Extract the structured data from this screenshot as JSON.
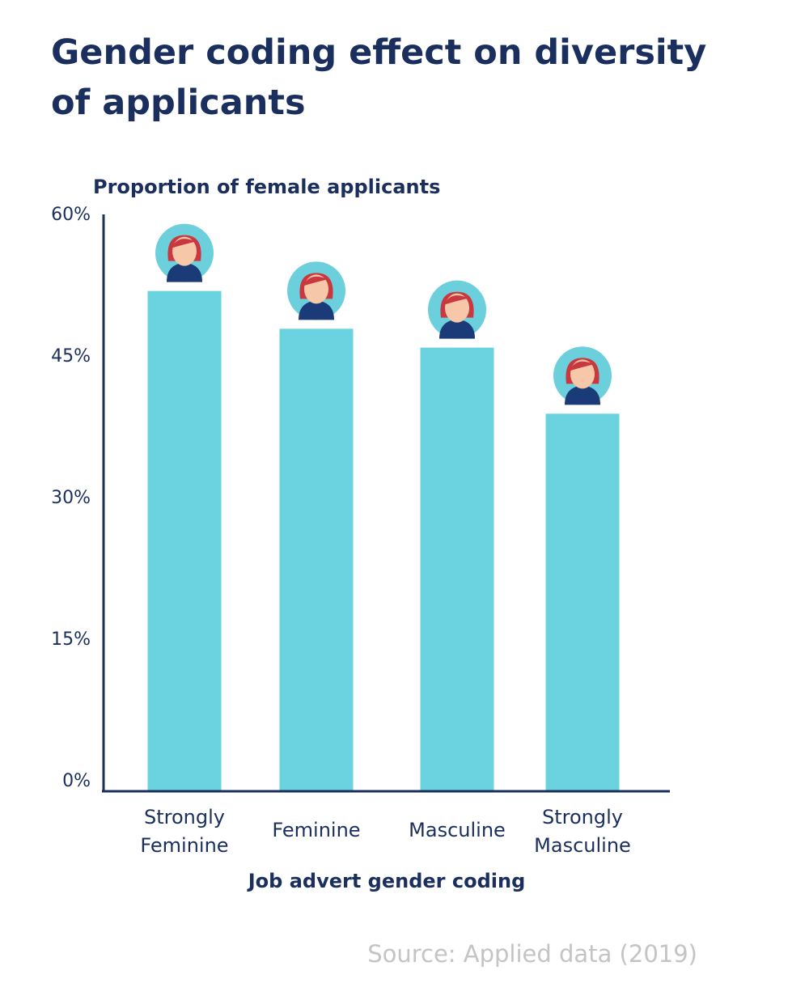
{
  "chart_data": {
    "type": "bar",
    "title": "Gender coding effect on diversity of applicants",
    "y_label": "Proportion of female applicants",
    "x_label": "Job advert gender coding",
    "source": "Source: Applied data (2019)",
    "categories": [
      "Strongly Feminine",
      "Feminine",
      "Masculine",
      "Strongly Masculine"
    ],
    "values": [
      53,
      49,
      47,
      40
    ],
    "color": "#6bd3e0",
    "ylim": [
      0,
      60
    ],
    "yticks": [
      {
        "value": 0,
        "label": "0%"
      },
      {
        "value": 15,
        "label": "15%"
      },
      {
        "value": 30,
        "label": "30%"
      },
      {
        "value": 45,
        "label": "45%"
      },
      {
        "value": 60,
        "label": "60%"
      }
    ],
    "grid": false
  }
}
